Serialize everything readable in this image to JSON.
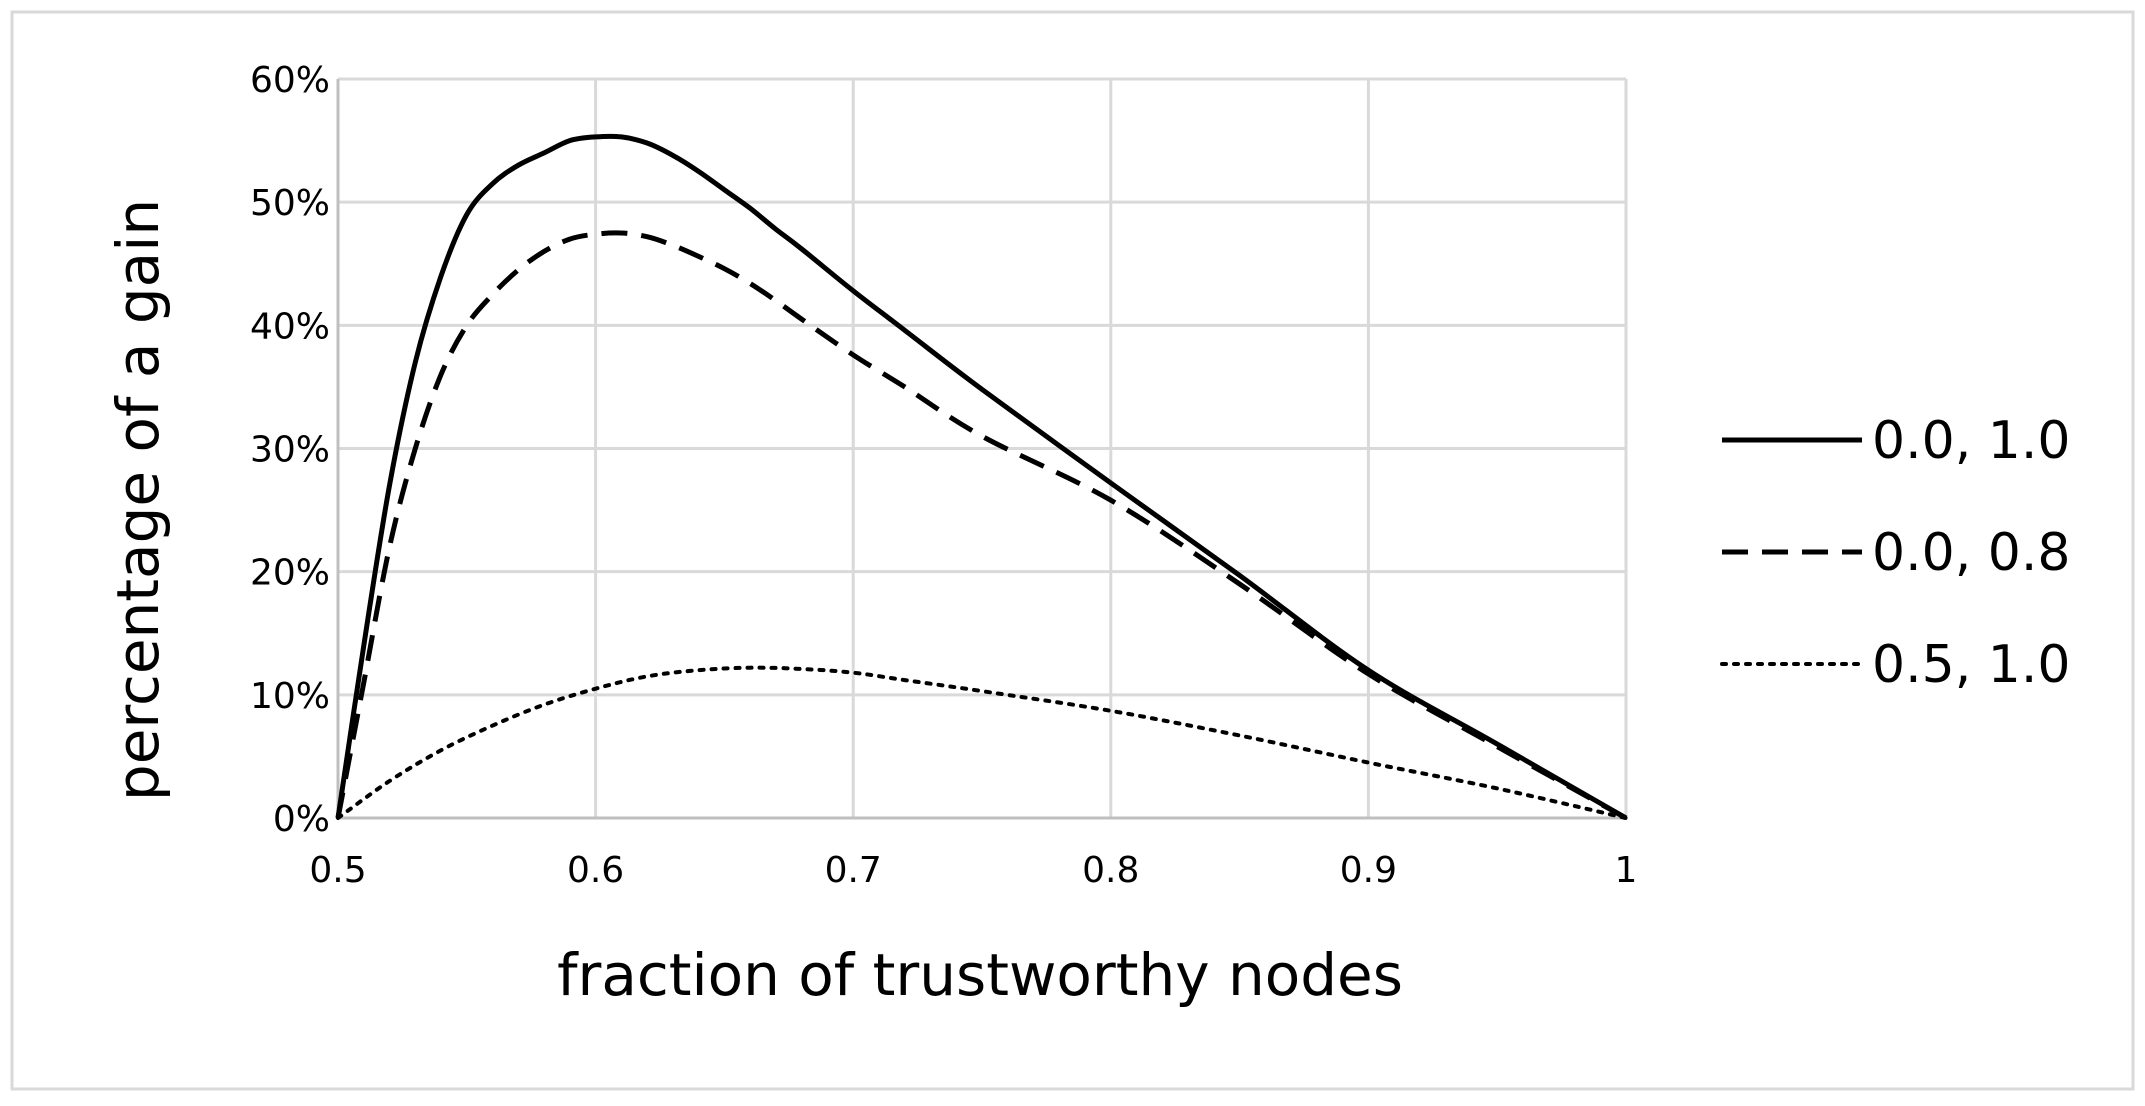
{
  "chart_data": {
    "type": "line",
    "xlabel": "fraction of trustworthy nodes",
    "ylabel": "percentage of a gain",
    "xlim": [
      0.5,
      1.0
    ],
    "ylim": [
      0,
      0.6
    ],
    "x_ticks": [
      0.5,
      0.6,
      0.7,
      0.8,
      0.9,
      1.0
    ],
    "x_tick_labels": [
      "0.5",
      "0.6",
      "0.7",
      "0.8",
      "0.9",
      "1"
    ],
    "y_ticks": [
      0,
      0.1,
      0.2,
      0.3,
      0.4,
      0.5,
      0.6
    ],
    "y_tick_labels": [
      "0%",
      "10%",
      "20%",
      "30%",
      "40%",
      "50%",
      "60%"
    ],
    "grid": true,
    "legend_position": "right",
    "series": [
      {
        "name": "0.0, 1.0",
        "style": "solid",
        "color": "#000000",
        "x": [
          0.5,
          0.51,
          0.52,
          0.53,
          0.54,
          0.55,
          0.56,
          0.57,
          0.58,
          0.59,
          0.6,
          0.61,
          0.62,
          0.63,
          0.64,
          0.65,
          0.66,
          0.67,
          0.68,
          0.7,
          0.72,
          0.75,
          0.8,
          0.85,
          0.9,
          0.95,
          1.0
        ],
        "y": [
          0.0,
          0.14,
          0.27,
          0.37,
          0.44,
          0.49,
          0.515,
          0.53,
          0.54,
          0.55,
          0.553,
          0.553,
          0.548,
          0.538,
          0.525,
          0.51,
          0.495,
          0.478,
          0.462,
          0.428,
          0.396,
          0.348,
          0.272,
          0.197,
          0.12,
          0.06,
          0.0
        ]
      },
      {
        "name": "0.0, 0.8",
        "style": "dashed",
        "color": "#000000",
        "x": [
          0.5,
          0.51,
          0.52,
          0.53,
          0.54,
          0.55,
          0.56,
          0.57,
          0.58,
          0.59,
          0.6,
          0.61,
          0.62,
          0.63,
          0.64,
          0.65,
          0.66,
          0.67,
          0.68,
          0.7,
          0.72,
          0.75,
          0.8,
          0.85,
          0.9,
          0.95,
          1.0
        ],
        "y": [
          0.0,
          0.11,
          0.22,
          0.3,
          0.36,
          0.4,
          0.425,
          0.445,
          0.46,
          0.47,
          0.474,
          0.475,
          0.472,
          0.465,
          0.456,
          0.446,
          0.434,
          0.42,
          0.405,
          0.376,
          0.35,
          0.31,
          0.258,
          0.19,
          0.117,
          0.058,
          0.0
        ]
      },
      {
        "name": "0.5, 1.0",
        "style": "dotted",
        "color": "#000000",
        "x": [
          0.5,
          0.52,
          0.54,
          0.56,
          0.58,
          0.6,
          0.62,
          0.64,
          0.66,
          0.68,
          0.7,
          0.72,
          0.75,
          0.8,
          0.85,
          0.9,
          0.95,
          1.0
        ],
        "y": [
          0.0,
          0.03,
          0.055,
          0.075,
          0.092,
          0.105,
          0.115,
          0.12,
          0.122,
          0.121,
          0.118,
          0.112,
          0.103,
          0.087,
          0.067,
          0.045,
          0.024,
          0.0
        ]
      }
    ]
  }
}
